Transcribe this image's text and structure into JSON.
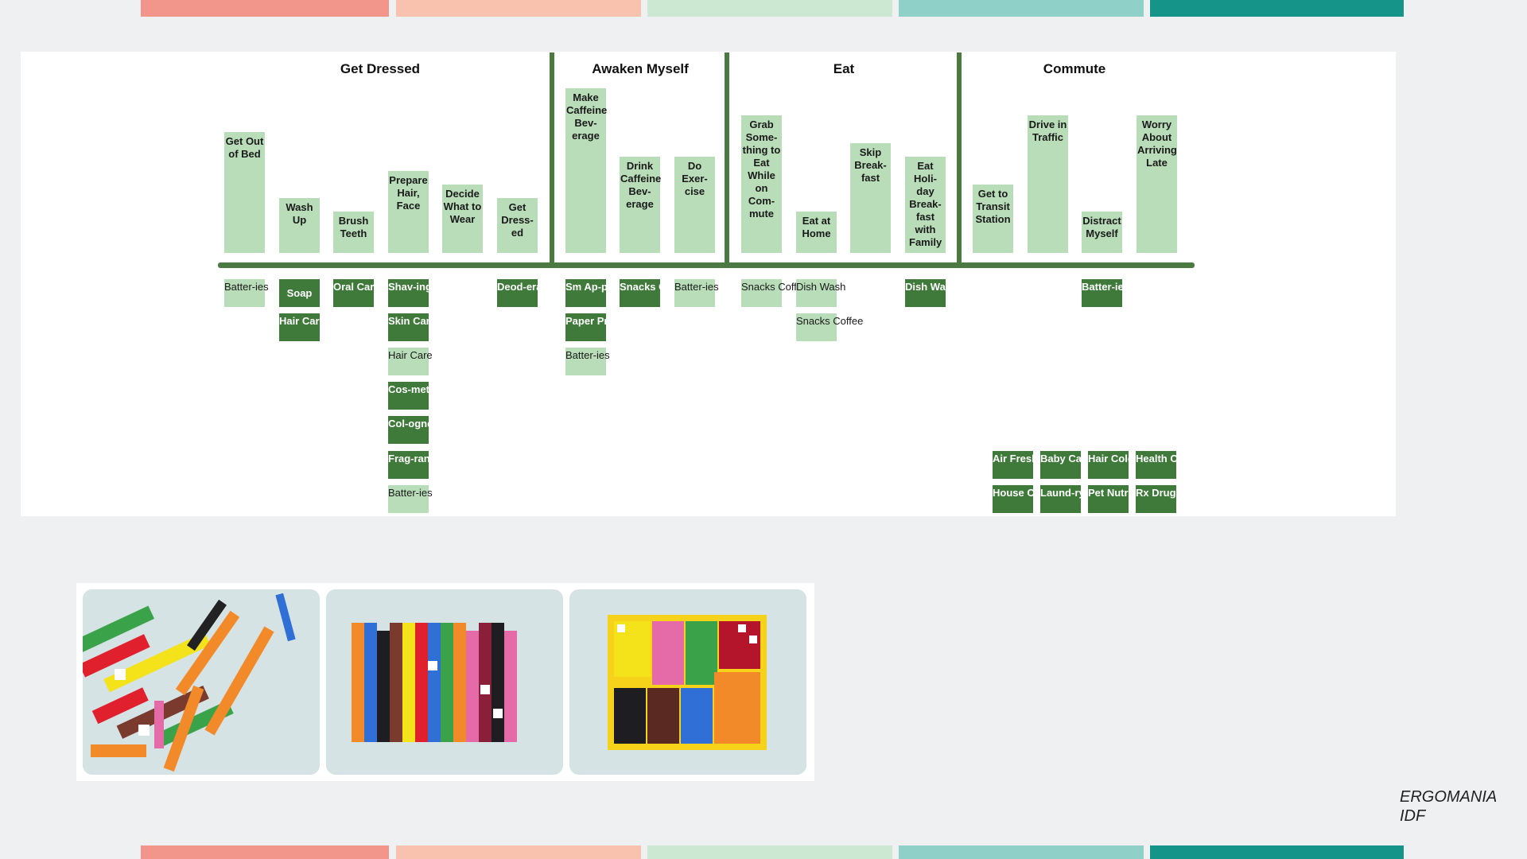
{
  "colors": {
    "stripe": [
      "#f2968c",
      "#f8c2ae",
      "#cde8d2",
      "#8fd1c9",
      "#15958a"
    ],
    "dark_green": "#3f7a3a",
    "light_green": "#b8ddb8",
    "rule": "#4a7a42"
  },
  "phases": [
    "Get Dressed",
    "Awaken Myself",
    "Eat",
    "Commute"
  ],
  "steps": [
    {
      "label": "Get Out of Bed"
    },
    {
      "label": "Wash Up"
    },
    {
      "label": "Brush Teeth"
    },
    {
      "label": "Prepare Hair, Face"
    },
    {
      "label": "Decide What to Wear"
    },
    {
      "label": "Get Dress-ed"
    },
    {
      "label": "Make Caffeine Bev-erage"
    },
    {
      "label": "Drink Caffeine Bev-erage"
    },
    {
      "label": "Do Exer-cise"
    },
    {
      "label": "Grab Some-thing to Eat While on Com-mute"
    },
    {
      "label": "Eat at Home"
    },
    {
      "label": "Skip Break-fast"
    },
    {
      "label": "Eat Holi-day Break-fast with Family"
    },
    {
      "label": "Get to Transit Station"
    },
    {
      "label": "Drive in Traffic"
    },
    {
      "label": "Distract Myself"
    },
    {
      "label": "Worry About Arriving Late"
    }
  ],
  "categories": [
    {
      "label": "Batter-ies",
      "style": "light"
    },
    {
      "label": "Soap",
      "style": "dark"
    },
    {
      "label": "Hair Care",
      "style": "dark"
    },
    {
      "label": "Oral Care",
      "style": "dark"
    },
    {
      "label": "Shav-ing",
      "style": "dark"
    },
    {
      "label": "Skin Care",
      "style": "dark"
    },
    {
      "label": "Hair Care",
      "style": "light"
    },
    {
      "label": "Cos-metics",
      "style": "dark"
    },
    {
      "label": "Col-ognes",
      "style": "dark"
    },
    {
      "label": "Frag-rances",
      "style": "dark"
    },
    {
      "label": "Batter-ies",
      "style": "light"
    },
    {
      "label": "Deod-erant",
      "style": "dark"
    },
    {
      "label": "Sm Ap-pliance",
      "style": "dark"
    },
    {
      "label": "Paper Product",
      "style": "dark"
    },
    {
      "label": "Batter-ies",
      "style": "light"
    },
    {
      "label": "Snacks Coffee",
      "style": "dark"
    },
    {
      "label": "Batter-ies",
      "style": "light"
    },
    {
      "label": "Snacks Coffee",
      "style": "light"
    },
    {
      "label": "Dish Wash",
      "style": "light"
    },
    {
      "label": "Snacks Coffee",
      "style": "light"
    },
    {
      "label": "Dish Wash",
      "style": "dark"
    },
    {
      "label": "Batter-ies",
      "style": "dark"
    },
    {
      "label": "Air Fresh.",
      "style": "dark"
    },
    {
      "label": "Baby Care",
      "style": "dark"
    },
    {
      "label": "Hair Color",
      "style": "dark"
    },
    {
      "label": "Health Care",
      "style": "dark"
    },
    {
      "label": "House Cleaner",
      "style": "dark"
    },
    {
      "label": "Laund-ry Care",
      "style": "dark"
    },
    {
      "label": "Pet Nutrit.",
      "style": "dark"
    },
    {
      "label": "Rx Drugs",
      "style": "dark"
    }
  ],
  "brand": {
    "line1": "ERGOMANIA",
    "line2": "IDF"
  }
}
